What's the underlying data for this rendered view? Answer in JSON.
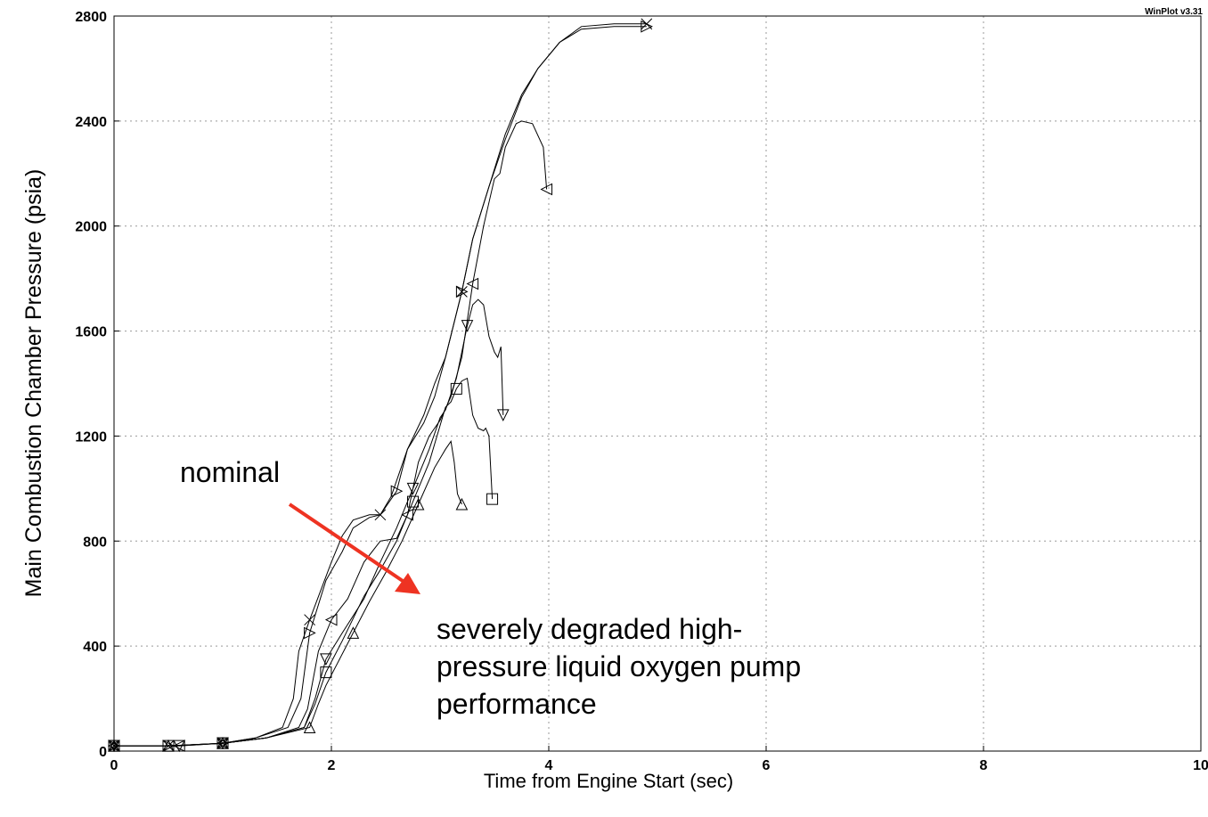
{
  "chart_data": {
    "type": "line",
    "xlabel": "Time from Engine Start (sec)",
    "ylabel": "Main Combustion Chamber Pressure (psia)",
    "xlim": [
      0,
      10
    ],
    "ylim": [
      0,
      2800
    ],
    "x_ticks": [
      0,
      2,
      4,
      6,
      8,
      10
    ],
    "y_ticks": [
      0,
      400,
      800,
      1200,
      1600,
      2000,
      2400,
      2800
    ],
    "grid": true,
    "watermark": "WinPlot v3.31",
    "annotations": [
      {
        "text": "nominal"
      },
      {
        "text": "severely degraded high-\npressure liquid oxygen pump\nperformance"
      }
    ],
    "series": [
      {
        "marker": "x",
        "x": [
          0,
          0.5,
          1.0,
          1.3,
          1.55,
          1.65,
          1.7,
          1.8,
          2.0,
          2.1,
          2.2,
          2.35,
          2.45,
          2.55,
          2.7,
          2.85,
          2.95,
          3.05,
          3.2,
          3.3,
          3.45,
          3.6,
          3.75,
          3.9,
          4.1,
          4.3,
          4.6,
          4.9
        ],
        "y": [
          20,
          20,
          30,
          50,
          90,
          200,
          380,
          500,
          720,
          820,
          880,
          900,
          900,
          970,
          1150,
          1280,
          1400,
          1500,
          1750,
          1950,
          2150,
          2350,
          2500,
          2600,
          2700,
          2760,
          2770,
          2770
        ]
      },
      {
        "marker": "triangle-right",
        "x": [
          0,
          0.5,
          1.0,
          1.3,
          1.6,
          1.72,
          1.8,
          1.95,
          2.1,
          2.2,
          2.35,
          2.45,
          2.6,
          2.7,
          2.85,
          2.95,
          3.05,
          3.2,
          3.3,
          3.45,
          3.6,
          3.75,
          3.9,
          4.1,
          4.3,
          4.6,
          4.9
        ],
        "y": [
          20,
          20,
          30,
          50,
          90,
          200,
          450,
          650,
          760,
          850,
          890,
          900,
          990,
          1150,
          1250,
          1350,
          1500,
          1750,
          1950,
          2150,
          2330,
          2490,
          2600,
          2700,
          2750,
          2760,
          2760
        ]
      },
      {
        "marker": "triangle-left",
        "x": [
          0,
          0.6,
          1.0,
          1.4,
          1.7,
          1.78,
          1.88,
          2.0,
          2.15,
          2.3,
          2.45,
          2.6,
          2.7,
          2.8,
          2.9,
          3.0,
          3.1,
          3.2,
          3.3,
          3.4,
          3.5,
          3.55,
          3.6,
          3.7,
          3.75,
          3.85,
          3.95,
          3.98
        ],
        "y": [
          20,
          20,
          30,
          50,
          90,
          160,
          380,
          500,
          580,
          720,
          800,
          810,
          900,
          1100,
          1200,
          1260,
          1350,
          1500,
          1780,
          2000,
          2180,
          2200,
          2300,
          2390,
          2400,
          2390,
          2300,
          2140
        ]
      },
      {
        "marker": "triangle-down",
        "x": [
          0,
          0.6,
          1.0,
          1.4,
          1.75,
          1.85,
          1.95,
          2.1,
          2.3,
          2.45,
          2.6,
          2.75,
          2.9,
          3.0,
          3.05,
          3.15,
          3.25,
          3.3,
          3.35,
          3.4,
          3.45,
          3.5,
          3.53,
          3.56,
          3.58
        ],
        "y": [
          20,
          20,
          30,
          50,
          90,
          200,
          350,
          450,
          580,
          720,
          850,
          1000,
          1150,
          1270,
          1300,
          1420,
          1620,
          1700,
          1720,
          1700,
          1580,
          1520,
          1500,
          1540,
          1280
        ]
      },
      {
        "marker": "square",
        "x": [
          0,
          0.5,
          1.0,
          1.4,
          1.75,
          1.85,
          1.95,
          2.1,
          2.3,
          2.45,
          2.6,
          2.75,
          2.9,
          3.0,
          3.05,
          3.1,
          3.15,
          3.2,
          3.25,
          3.3,
          3.35,
          3.4,
          3.42,
          3.45,
          3.48
        ],
        "y": [
          20,
          20,
          30,
          50,
          90,
          180,
          300,
          420,
          590,
          690,
          800,
          950,
          1100,
          1240,
          1310,
          1330,
          1380,
          1410,
          1420,
          1280,
          1230,
          1220,
          1230,
          1200,
          960
        ]
      },
      {
        "marker": "triangle-up",
        "x": [
          0,
          0.5,
          1.0,
          1.4,
          1.8,
          1.88,
          1.95,
          2.05,
          2.2,
          2.35,
          2.5,
          2.65,
          2.8,
          2.95,
          3.05,
          3.1,
          3.13,
          3.16,
          3.2
        ],
        "y": [
          20,
          20,
          30,
          50,
          90,
          180,
          250,
          330,
          450,
          570,
          680,
          800,
          940,
          1080,
          1150,
          1180,
          1100,
          980,
          940
        ]
      }
    ]
  }
}
